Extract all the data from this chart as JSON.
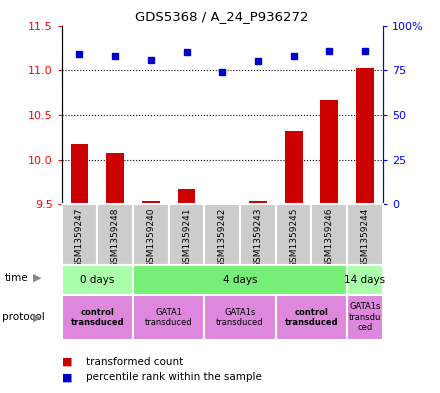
{
  "title": "GDS5368 / A_24_P936272",
  "samples": [
    "GSM1359247",
    "GSM1359248",
    "GSM1359240",
    "GSM1359241",
    "GSM1359242",
    "GSM1359243",
    "GSM1359245",
    "GSM1359246",
    "GSM1359244"
  ],
  "transformed_count": [
    10.18,
    10.08,
    9.54,
    9.67,
    9.5,
    9.54,
    10.32,
    10.67,
    11.02
  ],
  "percentile_rank": [
    84,
    83,
    81,
    85,
    74,
    80,
    83,
    86,
    86
  ],
  "ylim_left": [
    9.5,
    11.5
  ],
  "ylim_right": [
    0,
    100
  ],
  "yticks_left": [
    9.5,
    10.0,
    10.5,
    11.0,
    11.5
  ],
  "yticks_right": [
    0,
    25,
    50,
    75,
    100
  ],
  "ytick_labels_right": [
    "0",
    "25",
    "50",
    "75",
    "100%"
  ],
  "bar_color": "#cc0000",
  "dot_color": "#0000cc",
  "time_groups": [
    {
      "label": "0 days",
      "start": 0,
      "end": 2,
      "color": "#aaffaa"
    },
    {
      "label": "4 days",
      "start": 2,
      "end": 8,
      "color": "#77ee77"
    },
    {
      "label": "14 days",
      "start": 8,
      "end": 9,
      "color": "#aaffaa"
    }
  ],
  "protocol_groups": [
    {
      "label": "control\ntransduced",
      "start": 0,
      "end": 2,
      "color": "#dd88dd",
      "bold": true
    },
    {
      "label": "GATA1\ntransduced",
      "start": 2,
      "end": 4,
      "color": "#dd88dd",
      "bold": false
    },
    {
      "label": "GATA1s\ntransduced",
      "start": 4,
      "end": 6,
      "color": "#dd88dd",
      "bold": false
    },
    {
      "label": "control\ntransduced",
      "start": 6,
      "end": 8,
      "color": "#dd88dd",
      "bold": true
    },
    {
      "label": "GATA1s\ntransdu\nced",
      "start": 8,
      "end": 9,
      "color": "#dd88dd",
      "bold": false
    }
  ],
  "dotted_lines": [
    9.5,
    10.0,
    10.5,
    11.0
  ],
  "bar_baseline": 9.5,
  "sample_bg": "#cccccc",
  "sample_border": "#ffffff"
}
